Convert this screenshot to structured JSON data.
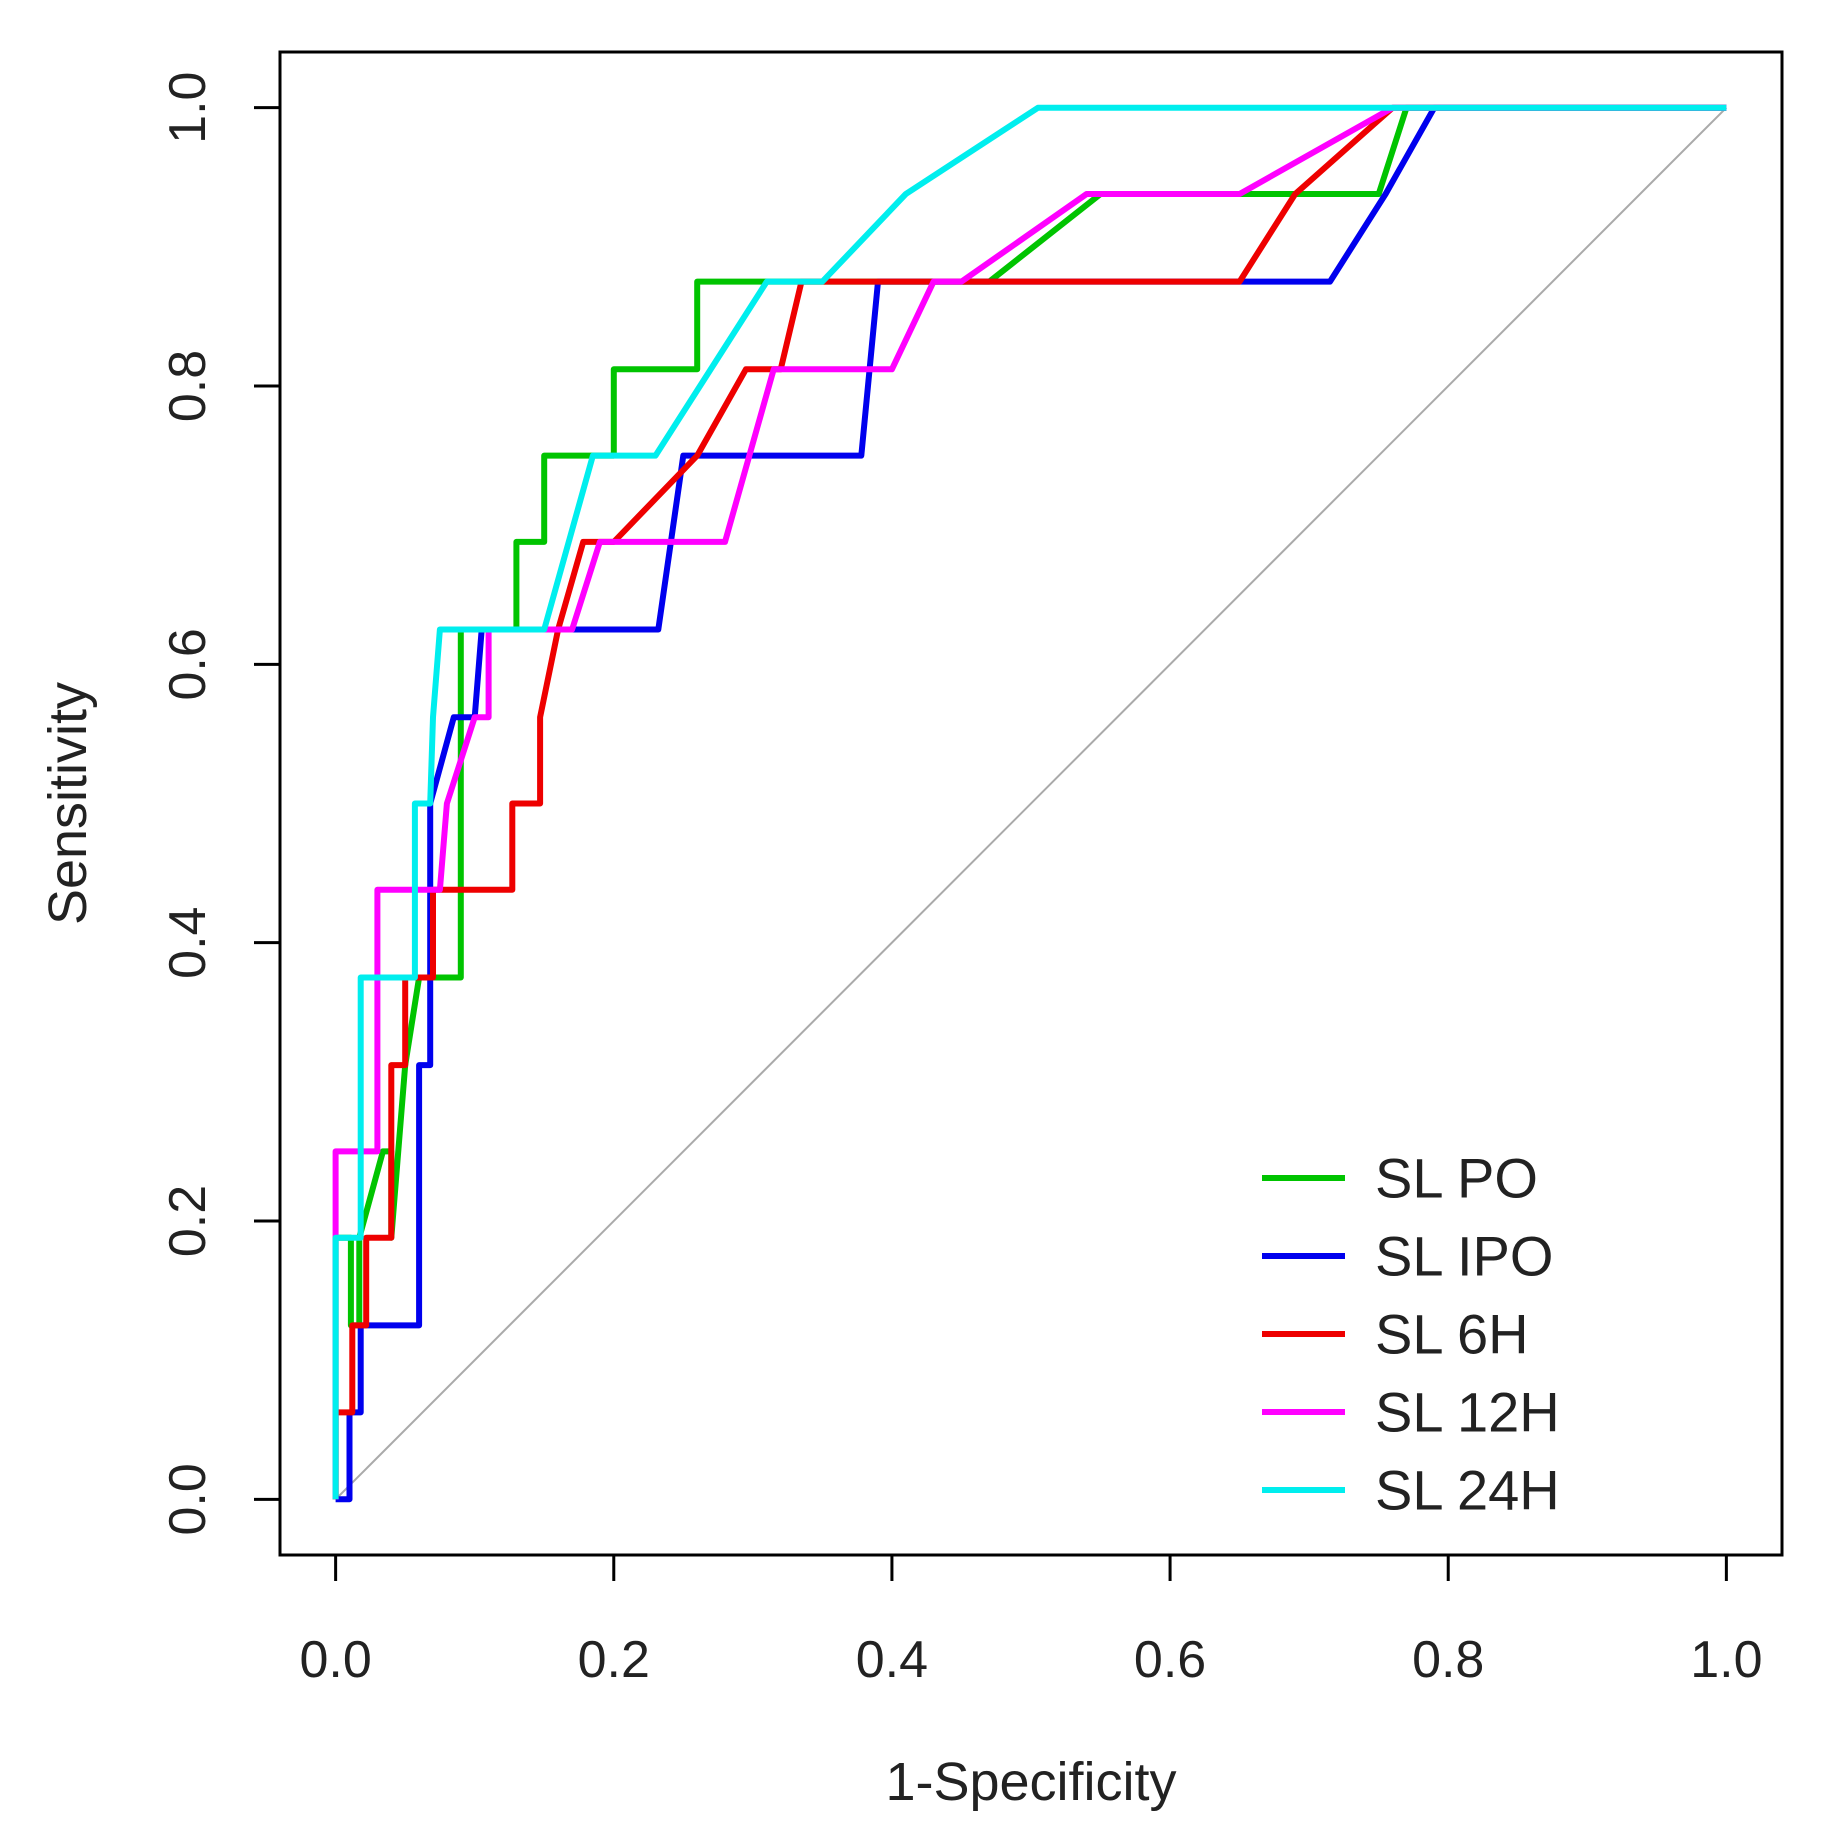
{
  "chart_data": {
    "type": "line",
    "xlabel": "1-Specificity",
    "ylabel": "Sensitivity",
    "xlim": [
      -0.04,
      1.04
    ],
    "ylim": [
      -0.04,
      1.04
    ],
    "xticks": [
      "0.0",
      "0.2",
      "0.4",
      "0.6",
      "0.8",
      "1.0"
    ],
    "yticks": [
      "0.0",
      "0.2",
      "0.4",
      "0.6",
      "0.8",
      "1.0"
    ],
    "grid": false,
    "legend_position": "bottom-right",
    "reference_line": {
      "from": [
        0,
        0
      ],
      "to": [
        1,
        1
      ],
      "color": "#aaaaaa"
    },
    "series": [
      {
        "name": "SL PO",
        "color": "#00c400",
        "points": [
          [
            0,
            0
          ],
          [
            0,
            0.188
          ],
          [
            0.011,
            0.188
          ],
          [
            0.011,
            0.125
          ],
          [
            0.017,
            0.125
          ],
          [
            0.017,
            0.188
          ],
          [
            0.034,
            0.25
          ],
          [
            0.04,
            0.25
          ],
          [
            0.04,
            0.188
          ],
          [
            0.05,
            0.312
          ],
          [
            0.06,
            0.375
          ],
          [
            0.09,
            0.375
          ],
          [
            0.09,
            0.438
          ],
          [
            0.09,
            0.625
          ],
          [
            0.13,
            0.625
          ],
          [
            0.13,
            0.688
          ],
          [
            0.15,
            0.688
          ],
          [
            0.15,
            0.75
          ],
          [
            0.2,
            0.75
          ],
          [
            0.2,
            0.812
          ],
          [
            0.26,
            0.812
          ],
          [
            0.26,
            0.875
          ],
          [
            0.47,
            0.875
          ],
          [
            0.55,
            0.938
          ],
          [
            0.75,
            0.938
          ],
          [
            0.77,
            1.0
          ],
          [
            1.0,
            1.0
          ]
        ]
      },
      {
        "name": "SL IPO",
        "color": "#0000ee",
        "points": [
          [
            0,
            0
          ],
          [
            0.01,
            0
          ],
          [
            0.01,
            0.0625
          ],
          [
            0.018,
            0.0625
          ],
          [
            0.018,
            0.125
          ],
          [
            0.06,
            0.125
          ],
          [
            0.06,
            0.312
          ],
          [
            0.068,
            0.312
          ],
          [
            0.068,
            0.5
          ],
          [
            0.085,
            0.562
          ],
          [
            0.1,
            0.562
          ],
          [
            0.105,
            0.625
          ],
          [
            0.232,
            0.625
          ],
          [
            0.25,
            0.75
          ],
          [
            0.378,
            0.75
          ],
          [
            0.39,
            0.875
          ],
          [
            0.715,
            0.875
          ],
          [
            0.755,
            0.938
          ],
          [
            0.79,
            1.0
          ],
          [
            1.0,
            1.0
          ]
        ]
      },
      {
        "name": "SL 6H",
        "color": "#ee0000",
        "points": [
          [
            0,
            0
          ],
          [
            0,
            0.0625
          ],
          [
            0.012,
            0.0625
          ],
          [
            0.012,
            0.125
          ],
          [
            0.022,
            0.125
          ],
          [
            0.022,
            0.188
          ],
          [
            0.04,
            0.188
          ],
          [
            0.04,
            0.312
          ],
          [
            0.05,
            0.312
          ],
          [
            0.05,
            0.375
          ],
          [
            0.07,
            0.375
          ],
          [
            0.07,
            0.438
          ],
          [
            0.127,
            0.438
          ],
          [
            0.127,
            0.5
          ],
          [
            0.147,
            0.5
          ],
          [
            0.147,
            0.562
          ],
          [
            0.16,
            0.625
          ],
          [
            0.178,
            0.688
          ],
          [
            0.2,
            0.688
          ],
          [
            0.26,
            0.75
          ],
          [
            0.295,
            0.812
          ],
          [
            0.32,
            0.812
          ],
          [
            0.335,
            0.875
          ],
          [
            0.65,
            0.875
          ],
          [
            0.69,
            0.938
          ],
          [
            0.76,
            1.0
          ],
          [
            1.0,
            1.0
          ]
        ]
      },
      {
        "name": "SL 12H",
        "color": "#ff00ff",
        "points": [
          [
            0,
            0
          ],
          [
            0,
            0.25
          ],
          [
            0.03,
            0.25
          ],
          [
            0.03,
            0.438
          ],
          [
            0.075,
            0.438
          ],
          [
            0.08,
            0.5
          ],
          [
            0.1,
            0.562
          ],
          [
            0.11,
            0.562
          ],
          [
            0.11,
            0.625
          ],
          [
            0.17,
            0.625
          ],
          [
            0.19,
            0.688
          ],
          [
            0.28,
            0.688
          ],
          [
            0.315,
            0.812
          ],
          [
            0.4,
            0.812
          ],
          [
            0.43,
            0.875
          ],
          [
            0.45,
            0.875
          ],
          [
            0.54,
            0.938
          ],
          [
            0.65,
            0.938
          ],
          [
            0.76,
            1.0
          ],
          [
            1.0,
            1.0
          ]
        ]
      },
      {
        "name": "SL 24H",
        "color": "#00eeee",
        "points": [
          [
            0,
            0
          ],
          [
            0,
            0.188
          ],
          [
            0.018,
            0.188
          ],
          [
            0.018,
            0.375
          ],
          [
            0.057,
            0.375
          ],
          [
            0.057,
            0.5
          ],
          [
            0.068,
            0.5
          ],
          [
            0.07,
            0.562
          ],
          [
            0.075,
            0.625
          ],
          [
            0.15,
            0.625
          ],
          [
            0.185,
            0.75
          ],
          [
            0.23,
            0.75
          ],
          [
            0.31,
            0.875
          ],
          [
            0.35,
            0.875
          ],
          [
            0.41,
            0.938
          ],
          [
            0.505,
            1.0
          ],
          [
            1.0,
            1.0
          ]
        ]
      }
    ]
  }
}
